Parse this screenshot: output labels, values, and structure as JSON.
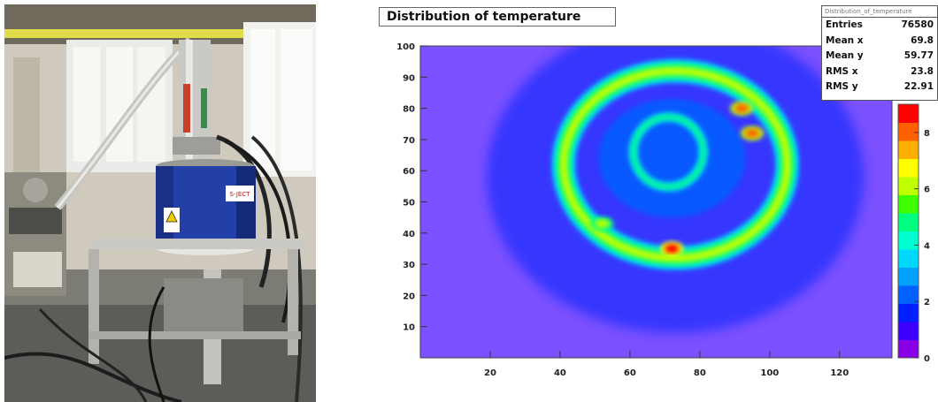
{
  "photo": {
    "logo_text": "S-JECT",
    "description_colors": {
      "dewar": "#2340a8",
      "frame": "#b8b8b8",
      "wall": "#d8d4c8"
    }
  },
  "chart_data": {
    "type": "heatmap",
    "title": "Distribution of temperature",
    "xlabel": "",
    "ylabel": "",
    "xlim": [
      0,
      135
    ],
    "ylim": [
      0,
      100
    ],
    "zlim": [
      0,
      9
    ],
    "x_ticks": [
      20,
      40,
      60,
      80,
      100,
      120
    ],
    "y_ticks": [
      10,
      20,
      30,
      40,
      50,
      60,
      70,
      80,
      90,
      100
    ],
    "z_ticks": [
      0,
      2,
      4,
      6,
      8
    ],
    "palette": [
      "#8a00e6",
      "#3d00ff",
      "#0020ff",
      "#0060ff",
      "#00a0ff",
      "#00d8ff",
      "#00ffd0",
      "#00ff80",
      "#40ff00",
      "#c0ff00",
      "#ffff00",
      "#ffb000",
      "#ff6000",
      "#ff0000"
    ],
    "background_color": "#7a50ff",
    "hot_spots": [
      {
        "x": 72,
        "y": 35,
        "value": 9
      },
      {
        "x": 92,
        "y": 80,
        "value": 8.5
      },
      {
        "x": 95,
        "y": 72,
        "value": 8
      },
      {
        "x": 52,
        "y": 43,
        "value": 6.5
      }
    ],
    "ring": {
      "center_x": 73,
      "center_y": 62,
      "radius_x": 32,
      "radius_y": 30,
      "peak_value": 6
    },
    "inner_ring": {
      "center_x": 71,
      "center_y": 66,
      "radius": 10,
      "peak_value": 4.5
    },
    "stats": {
      "header": "Distribution_of_temperature",
      "rows": [
        {
          "label": "Entries",
          "value": "76580"
        },
        {
          "label": "Mean x",
          "value": "69.8"
        },
        {
          "label": "Mean y",
          "value": "59.77"
        },
        {
          "label": "RMS x",
          "value": "23.8"
        },
        {
          "label": "RMS y",
          "value": "22.91"
        }
      ]
    }
  }
}
